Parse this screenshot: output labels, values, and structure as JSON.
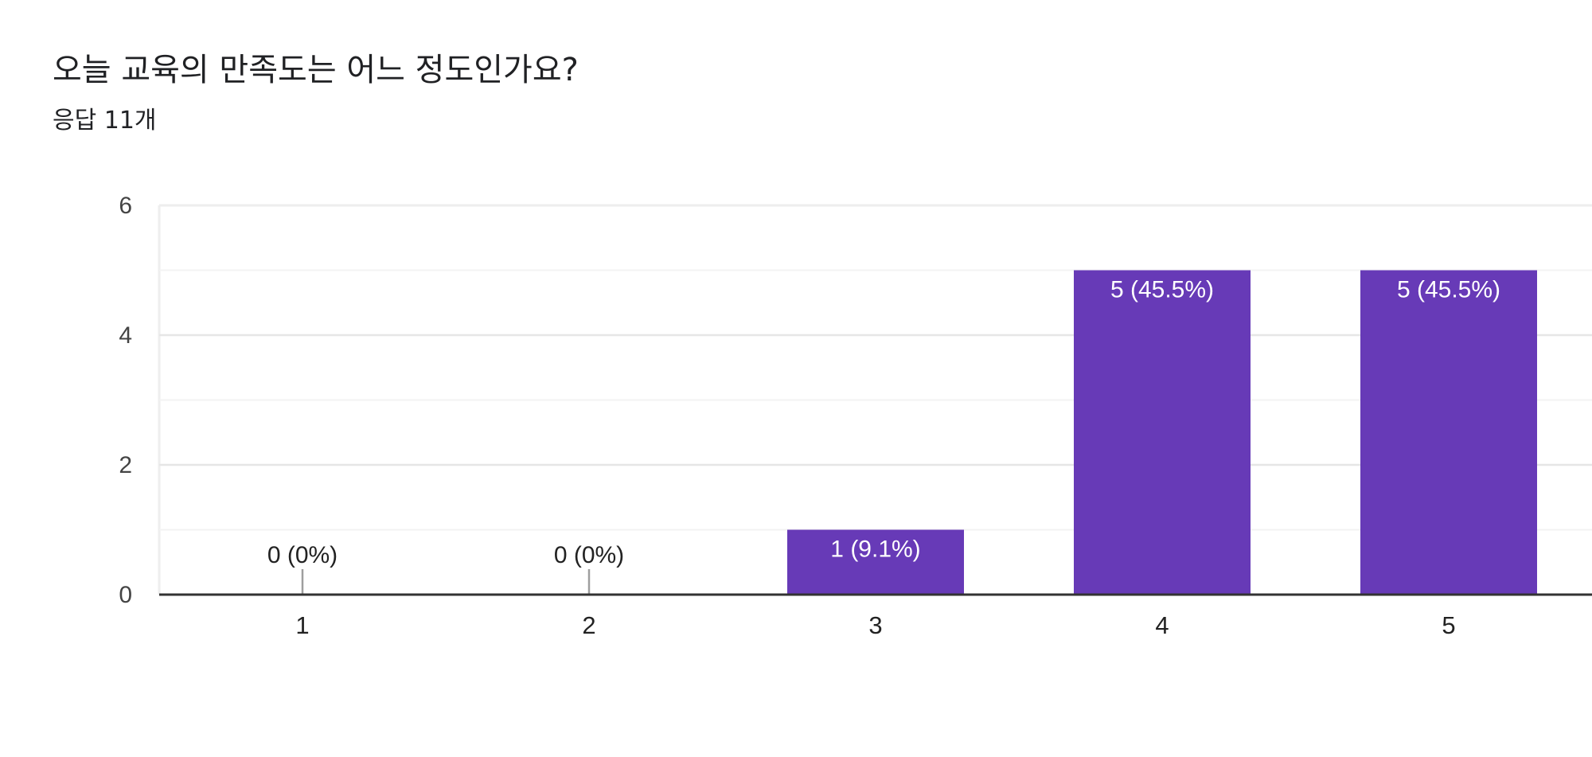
{
  "header": {
    "title": "오늘 교육의 만족도는 어느 정도인가요?",
    "response_count": "응답 11개"
  },
  "colors": {
    "bar": "#673ab7",
    "label_inside": "#ffffff",
    "label_outside": "#222222",
    "grid": "#eeeeee",
    "axis": "#333333",
    "zero_stub": "#9e9e9e"
  },
  "chart_data": {
    "type": "bar",
    "title": "오늘 교육의 만족도는 어느 정도인가요?",
    "subtitle": "응답 11개",
    "categories": [
      "1",
      "2",
      "3",
      "4",
      "5"
    ],
    "values": [
      0,
      0,
      1,
      5,
      5
    ],
    "data_labels": [
      "0 (0%)",
      "0 (0%)",
      "1 (9.1%)",
      "5 (45.5%)",
      "5 (45.5%)"
    ],
    "ylim": [
      0,
      6
    ],
    "y_ticks": [
      "0",
      "2",
      "4",
      "6"
    ],
    "y_tick_values": [
      0,
      2,
      4,
      6
    ],
    "xlabel": "",
    "ylabel": "",
    "grid": true,
    "legend": "none"
  }
}
